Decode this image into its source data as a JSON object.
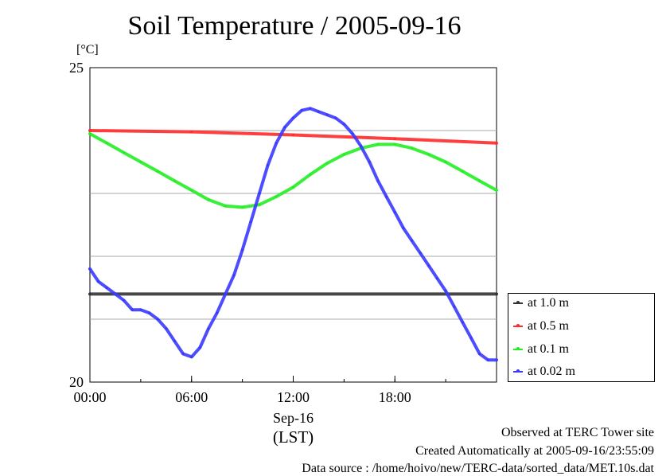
{
  "chart_data": {
    "type": "line",
    "title": "Soil Temperature / 2005-09-16",
    "ylabel": "[°C]",
    "xlabel": "(LST)",
    "date_label": "Sep-16",
    "ylim": [
      20,
      25
    ],
    "y_ticks": [
      {
        "value": 20,
        "label": "20"
      },
      {
        "value": 25,
        "label": "25"
      }
    ],
    "y_gridlines": [
      21,
      22,
      23,
      24
    ],
    "xlim": [
      0,
      24
    ],
    "x_ticks": [
      {
        "value": 0,
        "label": "00:00"
      },
      {
        "value": 6,
        "label": "06:00"
      },
      {
        "value": 12,
        "label": "12:00"
      },
      {
        "value": 18,
        "label": "18:00"
      }
    ],
    "grid": true,
    "legend_position": "right",
    "series": [
      {
        "name": "at 1.0 m",
        "color": "#333333",
        "x": [
          0,
          24
        ],
        "y": [
          21.4,
          21.4
        ]
      },
      {
        "name": "at 0.5 m",
        "color": "#ff2a2a",
        "x": [
          0,
          6,
          12,
          18,
          24
        ],
        "y": [
          24.0,
          23.98,
          23.93,
          23.87,
          23.8
        ]
      },
      {
        "name": "at 0.1 m",
        "color": "#22ee22",
        "x": [
          0,
          1,
          2,
          3,
          4,
          5,
          6,
          7,
          8,
          9,
          10,
          11,
          12,
          13,
          14,
          15,
          16,
          17,
          18,
          19,
          20,
          21,
          22,
          23,
          24
        ],
        "y": [
          23.95,
          23.8,
          23.65,
          23.5,
          23.35,
          23.2,
          23.05,
          22.9,
          22.8,
          22.78,
          22.82,
          22.95,
          23.1,
          23.3,
          23.48,
          23.62,
          23.72,
          23.78,
          23.78,
          23.72,
          23.62,
          23.5,
          23.35,
          23.2,
          23.05
        ]
      },
      {
        "name": "at 0.02 m",
        "color": "#3a3aff",
        "x": [
          0,
          0.5,
          1,
          1.5,
          2,
          2.5,
          3,
          3.5,
          4,
          4.5,
          5,
          5.5,
          6,
          6.5,
          7,
          7.5,
          8,
          8.5,
          9,
          9.5,
          10,
          10.5,
          11,
          11.5,
          12,
          12.5,
          13,
          13.5,
          14,
          14.5,
          15,
          15.5,
          16,
          16.5,
          17,
          17.5,
          18,
          18.5,
          19,
          19.5,
          20,
          20.5,
          21,
          21.5,
          22,
          22.5,
          23,
          23.5,
          24
        ],
        "y": [
          21.8,
          21.6,
          21.5,
          21.4,
          21.3,
          21.15,
          21.15,
          21.1,
          21.0,
          20.85,
          20.65,
          20.45,
          20.4,
          20.55,
          20.85,
          21.1,
          21.4,
          21.7,
          22.1,
          22.55,
          23.0,
          23.45,
          23.8,
          24.05,
          24.2,
          24.32,
          24.35,
          24.3,
          24.25,
          24.2,
          24.1,
          23.95,
          23.75,
          23.5,
          23.2,
          22.95,
          22.7,
          22.45,
          22.25,
          22.05,
          21.85,
          21.65,
          21.45,
          21.2,
          20.95,
          20.7,
          20.45,
          20.35,
          20.35
        ]
      }
    ]
  },
  "footer": {
    "site": "Observed at TERC Tower site",
    "created": "Created Automatically at 2005-09-16/23:55:09",
    "source": "Data source : /home/hoivo/new/TERC-data/sorted_data/MET.10s.dat"
  }
}
